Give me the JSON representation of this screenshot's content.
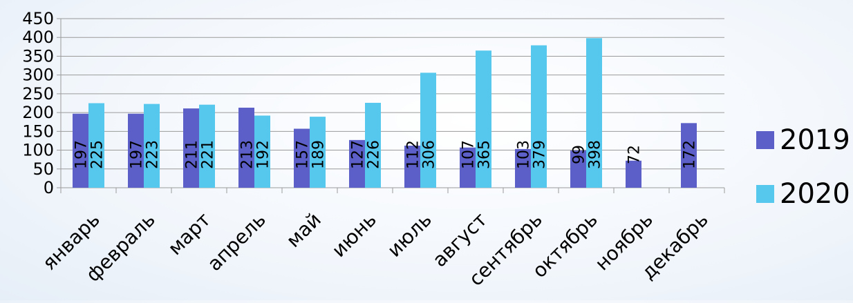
{
  "chart_data": {
    "type": "bar",
    "categories": [
      "январь",
      "февраль",
      "март",
      "апрель",
      "май",
      "июнь",
      "июль",
      "август",
      "сентябрь",
      "октябрь",
      "ноябрь",
      "декабрь"
    ],
    "series": [
      {
        "name": "2019",
        "color": "#5b5fc7",
        "values": [
          197,
          197,
          211,
          213,
          157,
          127,
          112,
          107,
          103,
          99,
          72,
          172
        ]
      },
      {
        "name": "2020",
        "color": "#56c8ee",
        "values": [
          225,
          223,
          221,
          192,
          189,
          226,
          306,
          365,
          379,
          398,
          null,
          null
        ]
      }
    ],
    "yticks": [
      0,
      50,
      100,
      150,
      200,
      250,
      300,
      350,
      400,
      450
    ],
    "ylim": [
      0,
      450
    ],
    "grid": true,
    "legend_position": "right",
    "title": "",
    "xlabel": "",
    "ylabel": ""
  }
}
